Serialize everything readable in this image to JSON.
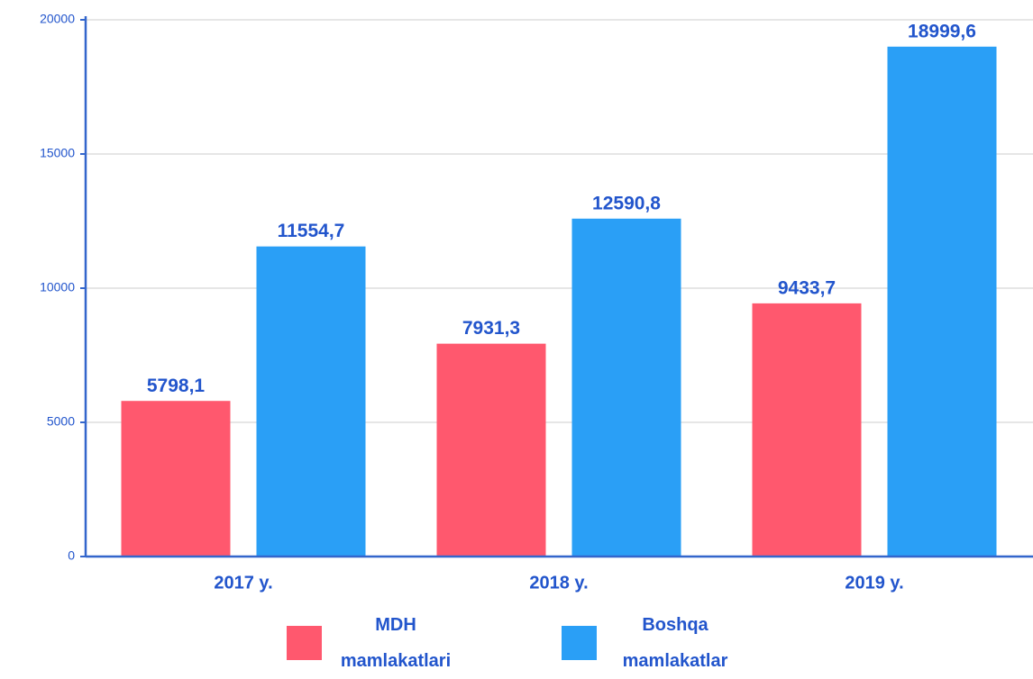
{
  "chart_data": {
    "type": "bar",
    "categories": [
      "2017 y.",
      "2018 y.",
      "2019 y."
    ],
    "series": [
      {
        "name": "MDH mamlakatlari",
        "color": "#ff586e",
        "values": [
          5798.1,
          7931.3,
          9433.7
        ],
        "value_labels": [
          "5798,1",
          "7931,3",
          "9433,7"
        ]
      },
      {
        "name": "Boshqa mamlakatlar",
        "color": "#2a9ff6",
        "values": [
          11554.7,
          12590.8,
          18999.6
        ],
        "value_labels": [
          "11554,7",
          "12590,8",
          "18999,6"
        ]
      }
    ],
    "ylim": [
      0,
      20000
    ],
    "yticks": [
      0,
      5000,
      10000,
      15000,
      20000
    ],
    "grid": true
  }
}
